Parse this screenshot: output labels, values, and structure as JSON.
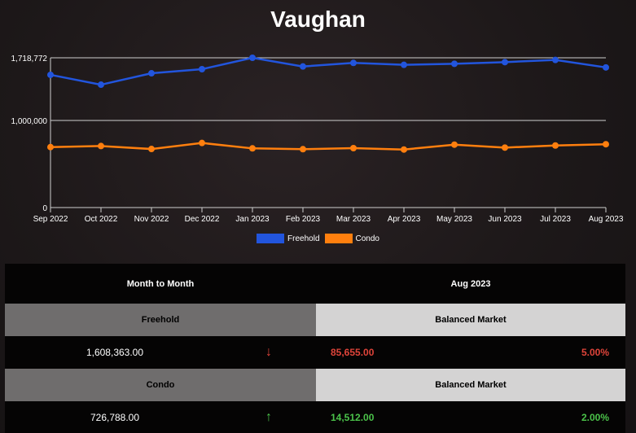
{
  "title": "Vaughan",
  "chart_data": {
    "type": "line",
    "title": "Vaughan",
    "categories": [
      "Sep 2022",
      "Oct 2022",
      "Nov 2022",
      "Dec 2022",
      "Jan 2023",
      "Feb 2023",
      "Mar 2023",
      "Apr 2023",
      "May 2023",
      "Jun 2023",
      "Jul 2023",
      "Aug 2023"
    ],
    "yticks": [
      {
        "value": 0,
        "label": "0"
      },
      {
        "value": 1000000,
        "label": "1,000,000"
      },
      {
        "value": 1718772,
        "label": "1,718,772"
      }
    ],
    "ylim": [
      0,
      1718772
    ],
    "grid": true,
    "legend": "bottom",
    "series": [
      {
        "name": "Freehold",
        "color": "#2255dd",
        "values": [
          1523000,
          1410000,
          1541000,
          1588000,
          1718772,
          1619000,
          1660000,
          1638000,
          1650000,
          1669000,
          1694018,
          1608363
        ]
      },
      {
        "name": "Condo",
        "color": "#ff7f0e",
        "values": [
          694000,
          706000,
          672000,
          741000,
          679000,
          670000,
          682000,
          666000,
          722000,
          688000,
          712276,
          726788
        ]
      }
    ]
  },
  "table": {
    "header_left": "Month to Month",
    "header_right": "Aug 2023",
    "rows": [
      {
        "type": "Freehold",
        "market": "Balanced Market",
        "value": "1,608,363.00",
        "direction": "down",
        "arrow": "↓",
        "change": "85,655.00",
        "percent": "5.00%",
        "color": "#e0443a"
      },
      {
        "type": "Condo",
        "market": "Balanced Market",
        "value": "726,788.00",
        "direction": "up",
        "arrow": "↑",
        "change": "14,512.00",
        "percent": "2.00%",
        "color": "#4bc24a"
      }
    ]
  }
}
